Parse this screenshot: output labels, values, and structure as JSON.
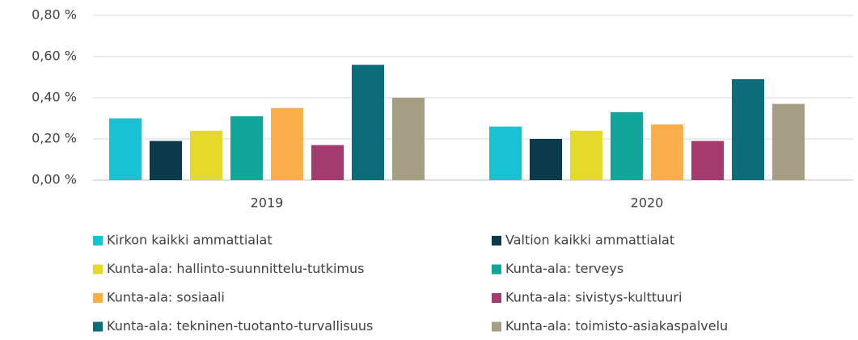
{
  "chart_data": {
    "type": "bar",
    "categories": [
      "2019",
      "2020"
    ],
    "series": [
      {
        "name": "Kirkon kaikki ammattialat",
        "color": "#17c3d3",
        "values": [
          0.3,
          0.26
        ]
      },
      {
        "name": "Valtion kaikki ammattialat",
        "color": "#0b3a4a",
        "values": [
          0.19,
          0.2
        ]
      },
      {
        "name": "Kunta-ala: hallinto-suunnittelu-tutkimus",
        "color": "#e5d92a",
        "values": [
          0.24,
          0.24
        ]
      },
      {
        "name": "Kunta-ala: terveys",
        "color": "#12a59a",
        "values": [
          0.31,
          0.33
        ]
      },
      {
        "name": "Kunta-ala: sosiaali",
        "color": "#f9ae4b",
        "values": [
          0.35,
          0.27
        ]
      },
      {
        "name": "Kunta-ala: sivistys-kulttuuri",
        "color": "#a33b6e",
        "values": [
          0.17,
          0.19
        ]
      },
      {
        "name": "Kunta-ala: tekninen-tuotanto-turvallisuus",
        "color": "#0d6c7a",
        "values": [
          0.56,
          0.49
        ]
      },
      {
        "name": "Kunta-ala: toimisto-asiakaspalvelu",
        "color": "#a59e85",
        "values": [
          0.4,
          0.37
        ]
      }
    ],
    "ylim": [
      0,
      0.8
    ],
    "yticks": [
      {
        "value": 0,
        "label": "0,00 %"
      },
      {
        "value": 0.2,
        "label": "0,20 %"
      },
      {
        "value": 0.4,
        "label": "0,40 %"
      },
      {
        "value": 0.6,
        "label": "0,60 %"
      },
      {
        "value": 0.8,
        "label": "0,80 %"
      }
    ],
    "grid": true,
    "legend": "bottom"
  }
}
